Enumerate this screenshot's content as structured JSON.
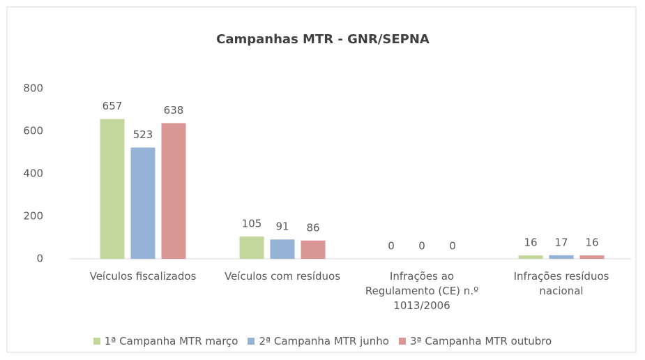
{
  "chart_data": {
    "type": "bar",
    "title": "Campanhas MTR - GNR/SEPNA",
    "categories": [
      "Veículos fiscalizados",
      "Veículos com resíduos",
      "Infrações ao Regulamento (CE) n.º 1013/2006",
      "Infrações resíduos nacional"
    ],
    "series": [
      {
        "name": "1ª Campanha MTR março",
        "color": "#c3d69b",
        "values": [
          657,
          105,
          0,
          16
        ]
      },
      {
        "name": "2ª Campanha MTR junho",
        "color": "#95b3d7",
        "values": [
          523,
          91,
          0,
          17
        ]
      },
      {
        "name": "3ª Campanha MTR outubro",
        "color": "#d99694",
        "values": [
          638,
          86,
          0,
          16
        ]
      }
    ],
    "ylim": [
      0,
      800
    ],
    "yticks": [
      0,
      200,
      400,
      600,
      800
    ],
    "grid": false,
    "legend": "bottom"
  }
}
